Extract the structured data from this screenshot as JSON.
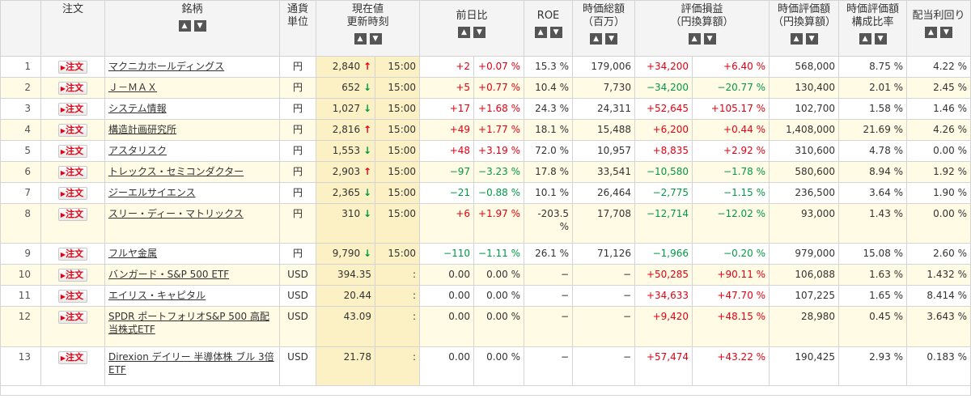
{
  "headers": {
    "no": "",
    "order": "注文",
    "name": "銘柄",
    "currency_line1": "通貨",
    "currency_line2": "単位",
    "price_line1": "現在値",
    "price_line2": "更新時刻",
    "change": "前日比",
    "roe": "ROE",
    "mcap_line1": "時価総額",
    "mcap_line2": "（百万）",
    "pl_line1": "評価損益",
    "pl_line2": "（円換算額）",
    "value_line1": "時価評価額",
    "value_line2": "（円換算額）",
    "ratio_line1": "時価評価額",
    "ratio_line2": "構成比率",
    "yield": "配当利回り"
  },
  "sort": {
    "asc": "▲",
    "desc": "▼"
  },
  "order_label": "注文",
  "rows": [
    {
      "no": "1",
      "name": "マクニカホールディングス",
      "cur": "円",
      "price": "2,840",
      "arrow": "↑",
      "dir": "up",
      "time": "15:00",
      "chg": "+2",
      "chgp": "+0.07 %",
      "chgdir": "pos",
      "roe": "15.3 %",
      "mcap": "179,006",
      "pl": "+34,200",
      "plp": "+6.40 %",
      "pldir": "pos",
      "value": "568,000",
      "ratio": "8.75 %",
      "yield": "4.22 %"
    },
    {
      "no": "2",
      "name": "Ｊ－ＭＡＸ",
      "cur": "円",
      "price": "652",
      "arrow": "↓",
      "dir": "down",
      "time": "15:00",
      "chg": "+5",
      "chgp": "+0.77 %",
      "chgdir": "pos",
      "roe": "10.4 %",
      "mcap": "7,730",
      "pl": "−34,200",
      "plp": "−20.77 %",
      "pldir": "neg",
      "value": "130,400",
      "ratio": "2.01 %",
      "yield": "2.45 %"
    },
    {
      "no": "3",
      "name": "システム情報",
      "cur": "円",
      "price": "1,027",
      "arrow": "↓",
      "dir": "down",
      "time": "15:00",
      "chg": "+17",
      "chgp": "+1.68 %",
      "chgdir": "pos",
      "roe": "24.3 %",
      "mcap": "24,311",
      "pl": "+52,645",
      "plp": "+105.17 %",
      "pldir": "pos",
      "value": "102,700",
      "ratio": "1.58 %",
      "yield": "1.46 %"
    },
    {
      "no": "4",
      "name": "構造計画研究所",
      "cur": "円",
      "price": "2,816",
      "arrow": "↑",
      "dir": "up",
      "time": "15:00",
      "chg": "+49",
      "chgp": "+1.77 %",
      "chgdir": "pos",
      "roe": "18.1 %",
      "mcap": "15,488",
      "pl": "+6,200",
      "plp": "+0.44 %",
      "pldir": "pos",
      "value": "1,408,000",
      "ratio": "21.69 %",
      "yield": "4.26 %"
    },
    {
      "no": "5",
      "name": "アスタリスク",
      "cur": "円",
      "price": "1,553",
      "arrow": "↓",
      "dir": "down",
      "time": "15:00",
      "chg": "+48",
      "chgp": "+3.19 %",
      "chgdir": "pos",
      "roe": "72.0 %",
      "mcap": "10,957",
      "pl": "+8,835",
      "plp": "+2.92 %",
      "pldir": "pos",
      "value": "310,600",
      "ratio": "4.78 %",
      "yield": "0.00 %"
    },
    {
      "no": "6",
      "name": "トレックス・セミコンダクター",
      "cur": "円",
      "price": "2,903",
      "arrow": "↑",
      "dir": "up",
      "time": "15:00",
      "chg": "−97",
      "chgp": "−3.23 %",
      "chgdir": "neg",
      "roe": "17.8 %",
      "mcap": "33,541",
      "pl": "−10,580",
      "plp": "−1.78 %",
      "pldir": "neg",
      "value": "580,600",
      "ratio": "8.94 %",
      "yield": "1.92 %"
    },
    {
      "no": "7",
      "name": "ジーエルサイエンス",
      "cur": "円",
      "price": "2,365",
      "arrow": "↓",
      "dir": "down",
      "time": "15:00",
      "chg": "−21",
      "chgp": "−0.88 %",
      "chgdir": "neg",
      "roe": "10.1 %",
      "mcap": "26,464",
      "pl": "−2,775",
      "plp": "−1.15 %",
      "pldir": "neg",
      "value": "236,500",
      "ratio": "3.64 %",
      "yield": "1.90 %"
    },
    {
      "no": "8",
      "name": "スリー・ディー・マトリックス",
      "cur": "円",
      "price": "310",
      "arrow": "↓",
      "dir": "down",
      "time": "15:00",
      "chg": "+6",
      "chgp": "+1.97 %",
      "chgdir": "pos",
      "roe": "-203.5 %",
      "mcap": "17,708",
      "pl": "−12,714",
      "plp": "−12.02 %",
      "pldir": "neg",
      "value": "93,000",
      "ratio": "1.43 %",
      "yield": "0.00 %"
    },
    {
      "no": "9",
      "name": "フルヤ金属",
      "cur": "円",
      "price": "9,790",
      "arrow": "↓",
      "dir": "down",
      "time": "15:00",
      "chg": "−110",
      "chgp": "−1.11 %",
      "chgdir": "neg",
      "roe": "26.1 %",
      "mcap": "71,126",
      "pl": "−1,966",
      "plp": "−0.20 %",
      "pldir": "neg",
      "value": "979,000",
      "ratio": "15.08 %",
      "yield": "2.60 %"
    },
    {
      "no": "10",
      "name": "バンガード・S&P 500 ETF",
      "cur": "USD",
      "price": "394.35",
      "arrow": "",
      "dir": "",
      "time": ":",
      "chg": "0.00",
      "chgp": "0.00 %",
      "chgdir": "",
      "roe": "−",
      "mcap": "−",
      "pl": "+50,285",
      "plp": "+90.11 %",
      "pldir": "pos",
      "value": "106,088",
      "ratio": "1.63 %",
      "yield": "1.432 %"
    },
    {
      "no": "11",
      "name": "エイリス・キャピタル",
      "cur": "USD",
      "price": "20.44",
      "arrow": "",
      "dir": "",
      "time": ":",
      "chg": "0.00",
      "chgp": "0.00 %",
      "chgdir": "",
      "roe": "−",
      "mcap": "−",
      "pl": "+34,633",
      "plp": "+47.70 %",
      "pldir": "pos",
      "value": "107,225",
      "ratio": "1.65 %",
      "yield": "8.414 %"
    },
    {
      "no": "12",
      "name": "SPDR ポートフォリオS&P 500 高配当株式ETF",
      "cur": "USD",
      "price": "43.09",
      "arrow": "",
      "dir": "",
      "time": ":",
      "chg": "0.00",
      "chgp": "0.00 %",
      "chgdir": "",
      "roe": "−",
      "mcap": "−",
      "pl": "+9,420",
      "plp": "+48.15 %",
      "pldir": "pos",
      "value": "28,980",
      "ratio": "0.45 %",
      "yield": "3.643 %"
    },
    {
      "no": "13",
      "name": "Direxion デイリー 半導体株 ブル 3倍 ETF",
      "cur": "USD",
      "price": "21.78",
      "arrow": "",
      "dir": "",
      "time": ":",
      "chg": "0.00",
      "chgp": "0.00 %",
      "chgdir": "",
      "roe": "−",
      "mcap": "−",
      "pl": "+57,474",
      "plp": "+43.22 %",
      "pldir": "pos",
      "value": "190,425",
      "ratio": "2.93 %",
      "yield": "0.183 %"
    }
  ]
}
